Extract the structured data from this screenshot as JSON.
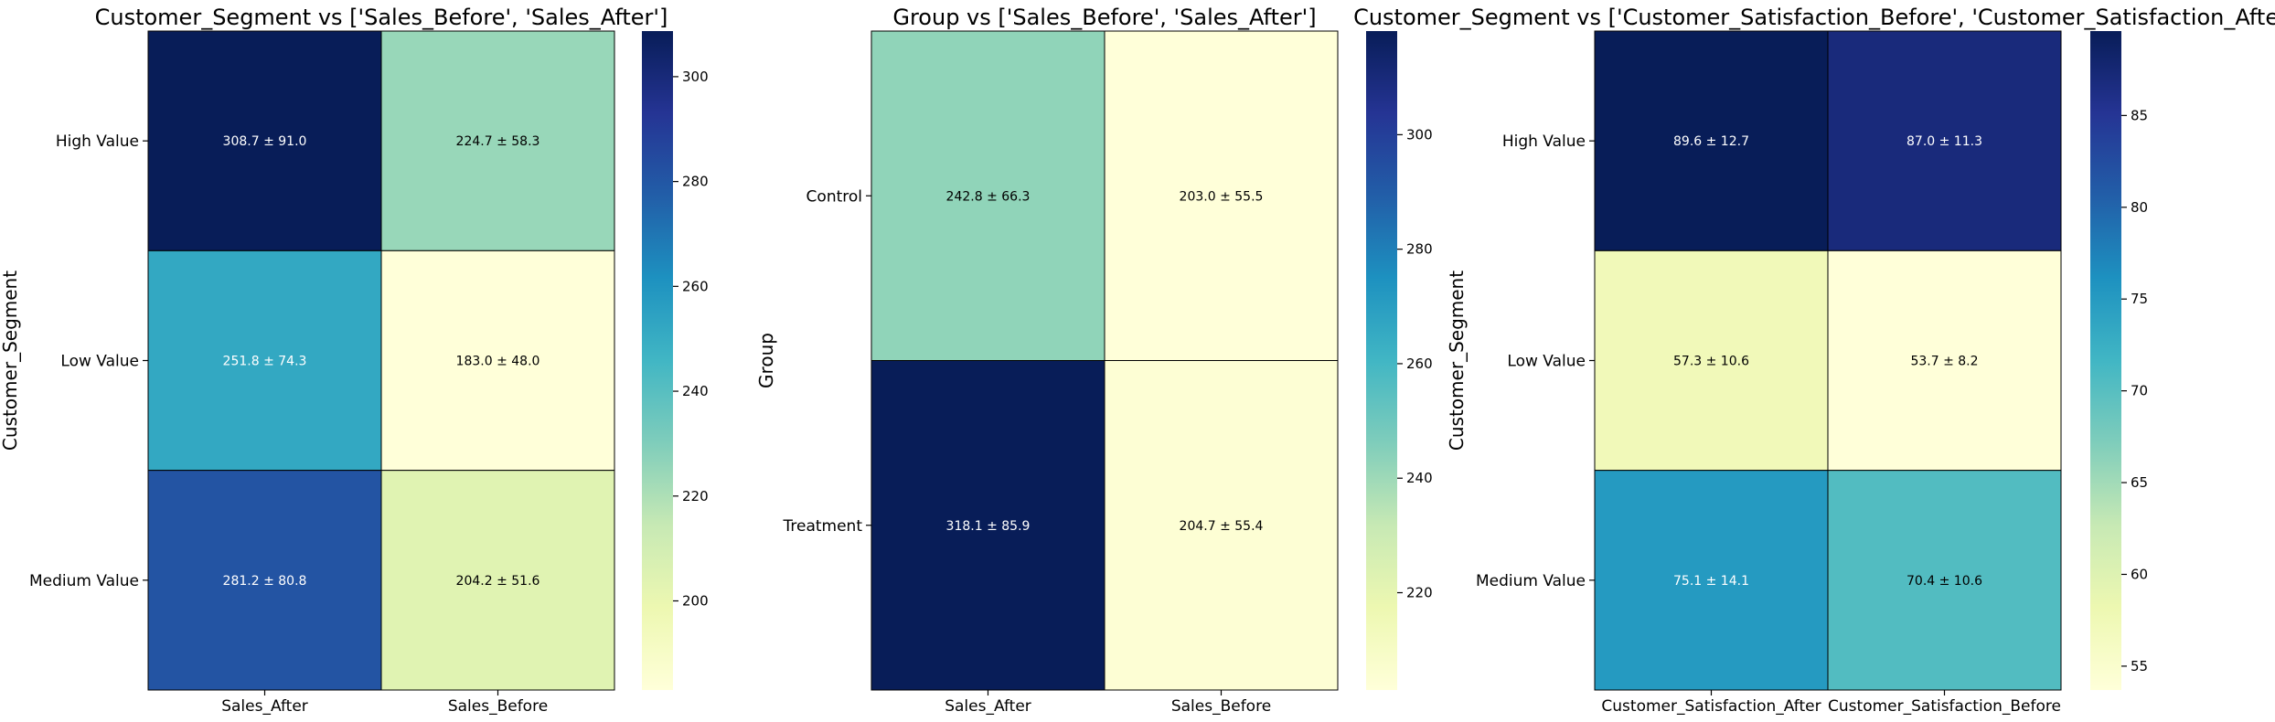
{
  "chart_data": [
    {
      "type": "heatmap",
      "title": "Customer_Segment vs ['Sales_Before', 'Sales_After']",
      "xlabel": "",
      "ylabel": "Customer_Segment",
      "x_categories": [
        "Sales_After",
        "Sales_Before"
      ],
      "y_categories": [
        "High Value",
        "Low Value",
        "Medium Value"
      ],
      "values": [
        [
          308.7,
          224.7
        ],
        [
          251.8,
          183.0
        ],
        [
          281.2,
          204.2
        ]
      ],
      "annotations": [
        [
          "308.7 ± 91.0",
          "224.7 ± 58.3"
        ],
        [
          "251.8 ± 74.3",
          "183.0 ± 48.0"
        ],
        [
          "281.2 ± 80.8",
          "204.2 ± 51.6"
        ]
      ],
      "colorbar": {
        "range": [
          183.0,
          308.7
        ],
        "ticks": [
          200,
          220,
          240,
          260,
          280,
          300
        ]
      },
      "colormap": "YlGnBu"
    },
    {
      "type": "heatmap",
      "title": "Group vs ['Sales_Before', 'Sales_After']",
      "xlabel": "",
      "ylabel": "Group",
      "x_categories": [
        "Sales_After",
        "Sales_Before"
      ],
      "y_categories": [
        "Control",
        "Treatment"
      ],
      "values": [
        [
          242.8,
          203.0
        ],
        [
          318.1,
          204.7
        ]
      ],
      "annotations": [
        [
          "242.8 ± 66.3",
          "203.0 ± 55.5"
        ],
        [
          "318.1 ± 85.9",
          "204.7 ± 55.4"
        ]
      ],
      "colorbar": {
        "range": [
          203.0,
          318.1
        ],
        "ticks": [
          220,
          240,
          260,
          280,
          300
        ]
      },
      "colormap": "YlGnBu"
    },
    {
      "type": "heatmap",
      "title": "Customer_Segment vs ['Customer_Satisfaction_Before', 'Customer_Satisfaction_After']",
      "xlabel": "",
      "ylabel": "Customer_Segment",
      "x_categories": [
        "Customer_Satisfaction_After",
        "Customer_Satisfaction_Before"
      ],
      "y_categories": [
        "High Value",
        "Low Value",
        "Medium Value"
      ],
      "values": [
        [
          89.6,
          87.0
        ],
        [
          57.3,
          53.7
        ],
        [
          75.1,
          70.4
        ]
      ],
      "annotations": [
        [
          "89.6 ± 12.7",
          "87.0 ± 11.3"
        ],
        [
          "57.3 ± 10.6",
          "53.7 ± 8.2"
        ],
        [
          "75.1 ± 14.1",
          "70.4 ± 10.6"
        ]
      ],
      "colorbar": {
        "range": [
          53.7,
          89.6
        ],
        "ticks": [
          55,
          60,
          65,
          70,
          75,
          80,
          85
        ]
      },
      "colormap": "YlGnBu"
    }
  ],
  "colors": {
    "colormap_stops": [
      "#ffffd9",
      "#edf8b1",
      "#c7e9b4",
      "#7fcdbb",
      "#41b6c4",
      "#1d91c0",
      "#225ea8",
      "#253494",
      "#081d58"
    ],
    "cell_border": "#000000",
    "text_dark": "#000000",
    "text_light": "#ffffff"
  }
}
